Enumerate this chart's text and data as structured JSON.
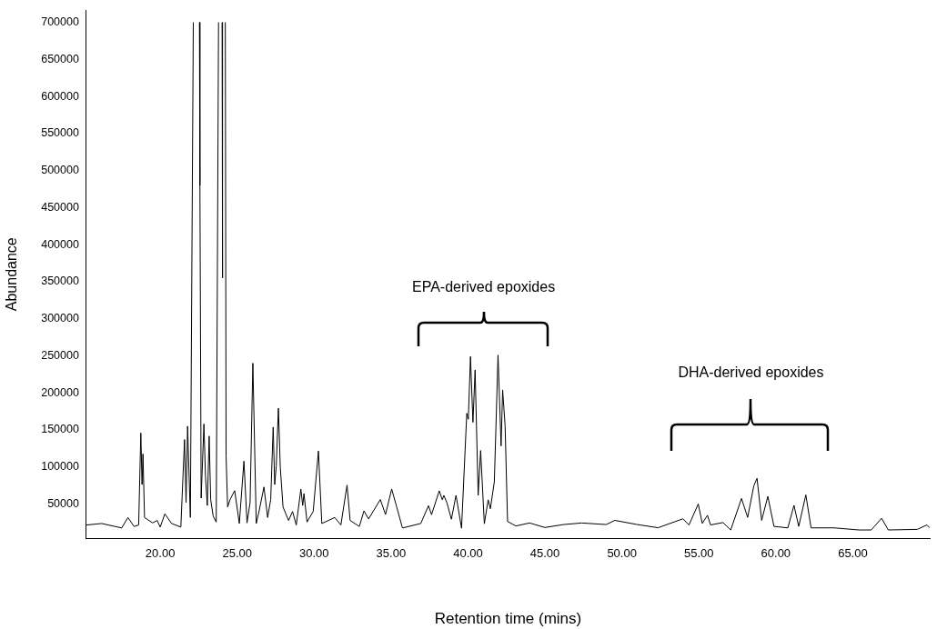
{
  "chart_data": {
    "type": "line",
    "xlabel": "Retention time (mins)",
    "ylabel": "Abundance",
    "color": "#000000",
    "legend": false,
    "grid": false,
    "marker": "none",
    "xlim": [
      15.2,
      70.0
    ],
    "ylim": [
      4000,
      716000
    ],
    "xticks": [
      {
        "value": 20,
        "label": "20.00"
      },
      {
        "value": 25,
        "label": "25.00"
      },
      {
        "value": 30,
        "label": "30.00"
      },
      {
        "value": 35,
        "label": "35.00"
      },
      {
        "value": 40,
        "label": "40.00"
      },
      {
        "value": 45,
        "label": "45.00"
      },
      {
        "value": 50,
        "label": "50.00"
      },
      {
        "value": 55,
        "label": "55.00"
      },
      {
        "value": 60,
        "label": "60.00"
      },
      {
        "value": 65,
        "label": "65.00"
      }
    ],
    "yticks": [
      50000,
      100000,
      150000,
      200000,
      250000,
      300000,
      350000,
      400000,
      450000,
      500000,
      550000,
      600000,
      650000,
      700000
    ],
    "x": [
      15.2,
      16.2,
      17.5,
      17.9,
      18.3,
      18.6,
      18.74,
      18.82,
      18.88,
      18.98,
      19.5,
      19.8,
      20.0,
      20.3,
      20.74,
      21.34,
      21.58,
      21.68,
      21.78,
      21.96,
      22.15,
      22.16,
      22.5,
      22.55,
      22.58,
      22.66,
      22.84,
      22.94,
      23.06,
      23.18,
      23.28,
      23.44,
      23.64,
      23.79,
      23.8,
      24.0,
      24.02,
      24.04,
      24.06,
      24.08,
      24.22,
      24.23,
      24.28,
      24.38,
      24.54,
      24.84,
      25.14,
      25.44,
      25.64,
      25.84,
      26.02,
      26.24,
      26.44,
      26.74,
      26.98,
      27.18,
      27.34,
      27.44,
      27.54,
      27.68,
      27.8,
      27.98,
      28.34,
      28.6,
      28.84,
      29.14,
      29.26,
      29.34,
      29.54,
      29.94,
      30.28,
      30.5,
      31.34,
      31.74,
      32.14,
      32.34,
      32.94,
      33.24,
      33.54,
      34.3,
      34.64,
      35.04,
      35.34,
      35.74,
      36.93,
      37.43,
      37.63,
      38.13,
      38.33,
      38.43,
      38.63,
      38.92,
      39.22,
      39.58,
      39.92,
      40.02,
      40.16,
      40.32,
      40.46,
      40.66,
      40.82,
      41.06,
      41.31,
      41.45,
      41.71,
      41.95,
      42.15,
      42.25,
      42.41,
      42.57,
      43.11,
      44.0,
      45.0,
      46.2,
      47.39,
      48.98,
      49.54,
      50.94,
      52.35,
      53.96,
      54.36,
      54.96,
      55.22,
      55.56,
      55.76,
      56.57,
      57.07,
      57.77,
      58.17,
      58.57,
      58.78,
      59.08,
      59.48,
      59.88,
      60.78,
      61.18,
      61.49,
      61.95,
      62.29,
      63.8,
      65.4,
      66.2,
      66.87,
      67.31,
      69.2,
      69.82,
      70.0
    ],
    "values": [
      21700,
      23700,
      17700,
      31800,
      19700,
      21700,
      145800,
      76300,
      117500,
      31800,
      24500,
      27800,
      18900,
      36700,
      23700,
      18900,
      136900,
      52000,
      155000,
      31800,
      700000,
      null,
      null,
      700000,
      480000,
      58000,
      158000,
      88000,
      48000,
      141700,
      56000,
      33800,
      25700,
      700000,
      null,
      null,
      700000,
      355000,
      700000,
      null,
      null,
      700000,
      114600,
      46000,
      56000,
      68000,
      23700,
      107800,
      24500,
      52000,
      240000,
      23700,
      42000,
      73000,
      31800,
      56000,
      153800,
      76300,
      101300,
      179300,
      100500,
      46000,
      27800,
      39900,
      21700,
      70200,
      48000,
      64100,
      25700,
      39900,
      121500,
      23700,
      31800,
      21700,
      75500,
      27800,
      19700,
      40700,
      29800,
      56000,
      35900,
      70200,
      48000,
      17700,
      23700,
      47700,
      35600,
      67800,
      55700,
      61700,
      51700,
      29500,
      61700,
      17300,
      172400,
      164400,
      249000,
      160300,
      231000,
      61700,
      122200,
      23400,
      55700,
      43600,
      79900,
      251000,
      128300,
      204000,
      155500,
      26400,
      20400,
      24400,
      18300,
      22300,
      24400,
      22300,
      27900,
      22500,
      18000,
      30000,
      21800,
      50100,
      23900,
      34800,
      21800,
      25000,
      15000,
      57500,
      31900,
      74500,
      84700,
      27900,
      60300,
      19800,
      17800,
      48200,
      19800,
      62300,
      17800,
      17800,
      15000,
      15000,
      30700,
      15000,
      15800,
      21800,
      17800
    ],
    "annotations": [
      "EPA-derived epoxides",
      "DHA-derived epoxides"
    ]
  }
}
